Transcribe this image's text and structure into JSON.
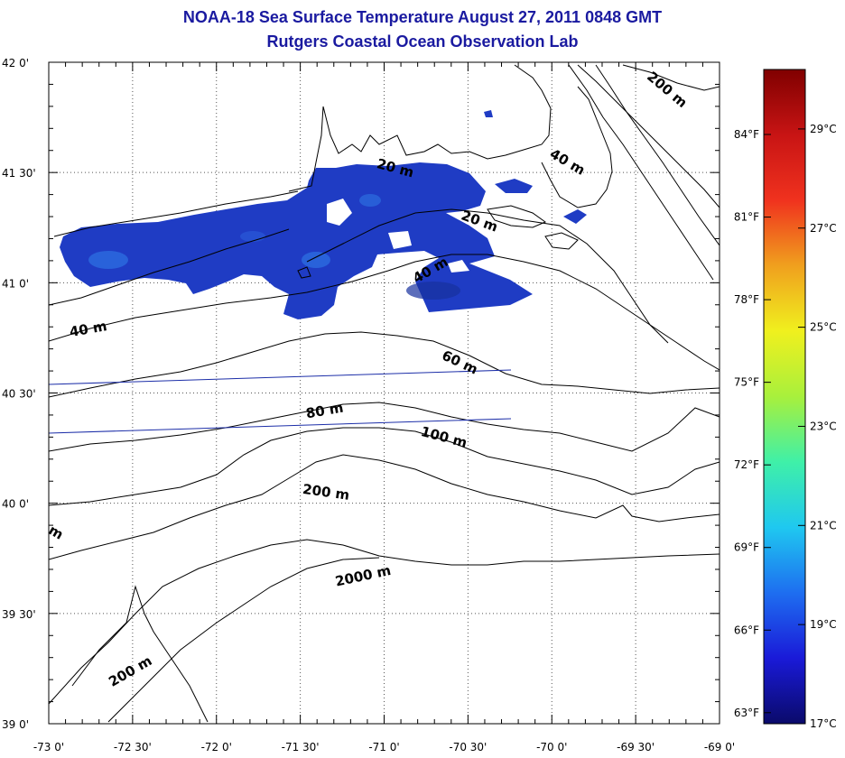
{
  "title": "NOAA-18 Sea Surface Temperature August 27, 2011 0848 GMT",
  "subtitle": "Rutgers Coastal Ocean Observation Lab",
  "map": {
    "lat_range": [
      39.0,
      42.0
    ],
    "lon_range": [
      -73.0,
      -69.0
    ],
    "grid": true,
    "lat_ticks": [
      {
        "value": 42.0,
        "label": "42 0'"
      },
      {
        "value": 41.5,
        "label": "41 30'"
      },
      {
        "value": 41.0,
        "label": "41 0'"
      },
      {
        "value": 40.5,
        "label": "40 30'"
      },
      {
        "value": 40.0,
        "label": "40 0'"
      },
      {
        "value": 39.5,
        "label": "39 30'"
      },
      {
        "value": 39.0,
        "label": "39 0'"
      }
    ],
    "lon_ticks": [
      {
        "value": -73.0,
        "label": "-73 0'"
      },
      {
        "value": -72.5,
        "label": "-72 30'"
      },
      {
        "value": -72.0,
        "label": "-72 0'"
      },
      {
        "value": -71.5,
        "label": "-71 30'"
      },
      {
        "value": -71.0,
        "label": "-71 0'"
      },
      {
        "value": -70.5,
        "label": "-70 30'"
      },
      {
        "value": -70.0,
        "label": "-70 0'"
      },
      {
        "value": -69.5,
        "label": "-69 30'"
      },
      {
        "value": -69.0,
        "label": "-69 0'"
      }
    ],
    "depth_labels": [
      {
        "text": "200 m",
        "lon": -69.33,
        "lat": 41.86,
        "angle": 40
      },
      {
        "text": "40 m",
        "lon": -69.92,
        "lat": 41.53,
        "angle": 30
      },
      {
        "text": "20 m",
        "lon": -70.94,
        "lat": 41.5,
        "angle": 15
      },
      {
        "text": "20 m",
        "lon": -70.44,
        "lat": 41.26,
        "angle": 20
      },
      {
        "text": "40 m",
        "lon": -70.71,
        "lat": 41.04,
        "angle": -30
      },
      {
        "text": "40 m",
        "lon": -72.76,
        "lat": 40.77,
        "angle": -10
      },
      {
        "text": "60 m",
        "lon": -70.56,
        "lat": 40.62,
        "angle": 25
      },
      {
        "text": "80 m",
        "lon": -71.35,
        "lat": 40.4,
        "angle": -10
      },
      {
        "text": "100 m",
        "lon": -70.65,
        "lat": 40.28,
        "angle": 15
      },
      {
        "text": "200 m",
        "lon": -71.35,
        "lat": 40.03,
        "angle": 8
      },
      {
        "text": "2000 m",
        "lon": -71.12,
        "lat": 39.65,
        "angle": -12
      },
      {
        "text": "200 m",
        "lon": -72.5,
        "lat": 39.22,
        "angle": -30
      },
      {
        "text": "m",
        "lon": -72.97,
        "lat": 39.85,
        "angle": 30
      }
    ],
    "sst_color": "#1f3cc4",
    "coast_color": "#000000",
    "track_line_color": "#1c2ea8"
  },
  "colorbar": {
    "celsius_ticks": [
      {
        "value": 29,
        "label": "29°C"
      },
      {
        "value": 27,
        "label": "27°C"
      },
      {
        "value": 25,
        "label": "25°C"
      },
      {
        "value": 23,
        "label": "23°C"
      },
      {
        "value": 21,
        "label": "21°C"
      },
      {
        "value": 19,
        "label": "19°C"
      },
      {
        "value": 17,
        "label": "17°C"
      }
    ],
    "fahrenheit_ticks": [
      {
        "value": 84,
        "label": "84°F"
      },
      {
        "value": 81,
        "label": "81°F"
      },
      {
        "value": 78,
        "label": "78°F"
      },
      {
        "value": 75,
        "label": "75°F"
      },
      {
        "value": 72,
        "label": "72°F"
      },
      {
        "value": 69,
        "label": "69°F"
      },
      {
        "value": 66,
        "label": "66°F"
      },
      {
        "value": 63,
        "label": "63°F"
      }
    ],
    "range_c": [
      17,
      30.2
    ],
    "colors": [
      "#0a0a6a",
      "#1a1ad8",
      "#1e6ef0",
      "#1fc8f0",
      "#3ff0a8",
      "#a8f03c",
      "#f0f01e",
      "#f0a01e",
      "#f0321e",
      "#c81414",
      "#800000"
    ]
  }
}
